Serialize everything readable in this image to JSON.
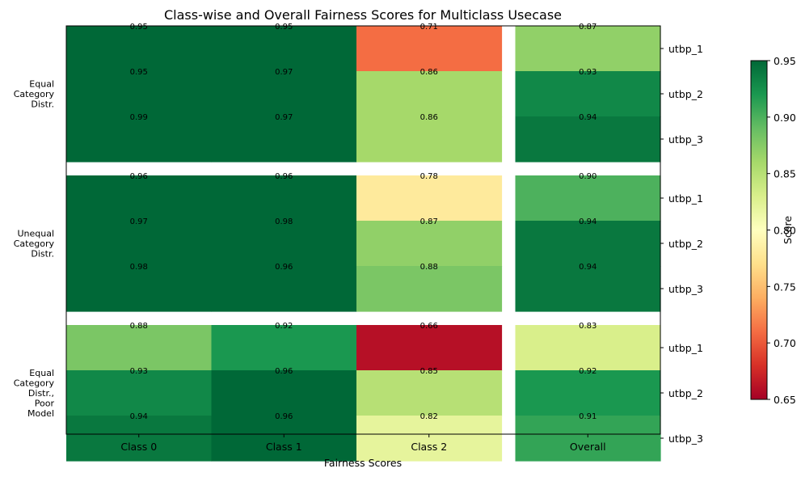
{
  "chart_data": {
    "type": "heatmap",
    "title": "Class-wise and Overall Fairness Scores for Multiclass Usecase",
    "xlabel": "Fairness Scores",
    "columns": [
      "Class 0",
      "Class 1",
      "Class 2",
      "Overall"
    ],
    "groups": [
      {
        "label": "Equal\nCategory\nDistr.",
        "rows": [
          {
            "label": "utbp_1",
            "values": [
              0.95,
              0.95,
              0.71,
              0.87
            ]
          },
          {
            "label": "utbp_2",
            "values": [
              0.95,
              0.97,
              0.86,
              0.93
            ]
          },
          {
            "label": "utbp_3",
            "values": [
              0.99,
              0.97,
              0.86,
              0.94
            ]
          }
        ]
      },
      {
        "label": "Unequal\nCategory\nDistr.",
        "rows": [
          {
            "label": "utbp_1",
            "values": [
              0.96,
              0.96,
              0.78,
              0.9
            ]
          },
          {
            "label": "utbp_2",
            "values": [
              0.97,
              0.98,
              0.87,
              0.94
            ]
          },
          {
            "label": "utbp_3",
            "values": [
              0.98,
              0.96,
              0.88,
              0.94
            ]
          }
        ]
      },
      {
        "label": "Equal\nCategory\nDistr.,\nPoor\nModel",
        "rows": [
          {
            "label": "utbp_1",
            "values": [
              0.88,
              0.92,
              0.66,
              0.83
            ]
          },
          {
            "label": "utbp_2",
            "values": [
              0.93,
              0.96,
              0.85,
              0.92
            ]
          },
          {
            "label": "utbp_3",
            "values": [
              0.94,
              0.96,
              0.82,
              0.91
            ]
          }
        ]
      }
    ],
    "colorbar": {
      "label": "Score",
      "range": [
        0.65,
        0.95
      ],
      "ticks": [
        "0.65",
        "0.70",
        "0.75",
        "0.80",
        "0.85",
        "0.90",
        "0.95"
      ],
      "colormap": "RdYlGn"
    }
  }
}
